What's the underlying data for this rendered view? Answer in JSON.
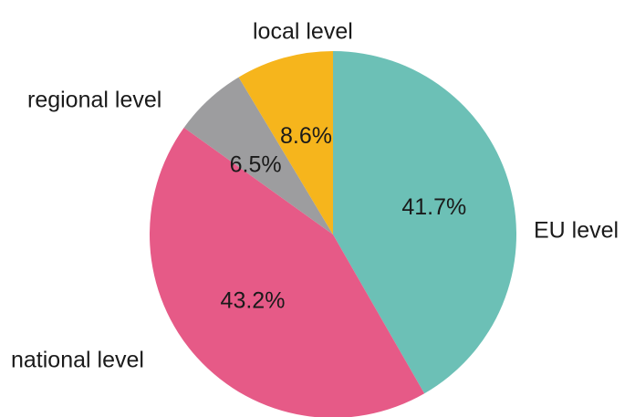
{
  "chart_data": {
    "type": "pie",
    "title": "",
    "start": "top",
    "direction": "clockwise",
    "slices": [
      {
        "label": "EU level",
        "value": 41.7,
        "value_label": "41.7%",
        "color": "#6cc0b6"
      },
      {
        "label": "national level",
        "value": 43.2,
        "value_label": "43.2%",
        "color": "#e65a87"
      },
      {
        "label": "regional level",
        "value": 6.5,
        "value_label": "6.5%",
        "color": "#9d9d9f"
      },
      {
        "label": "local level",
        "value": 8.6,
        "value_label": "8.6%",
        "color": "#f6b51c"
      }
    ]
  }
}
